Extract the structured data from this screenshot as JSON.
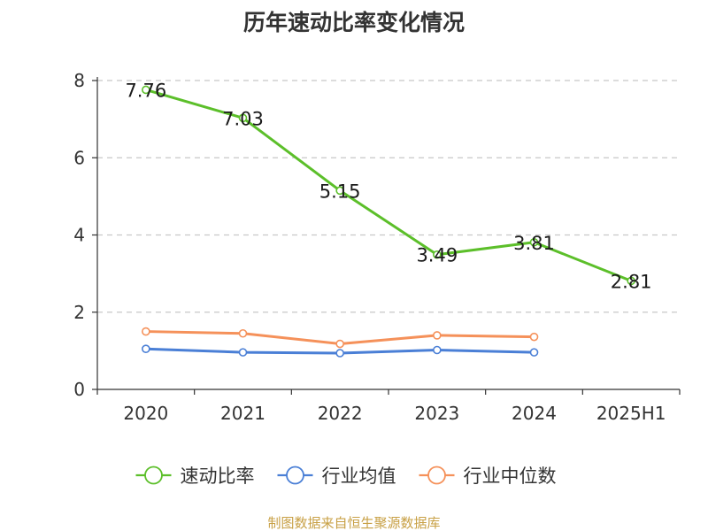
{
  "chart_data": {
    "type": "line",
    "title": "历年速动比率变化情况",
    "xlabel": "",
    "ylabel": "",
    "categories": [
      "2020",
      "2021",
      "2022",
      "2023",
      "2024",
      "2025H1"
    ],
    "ylim": [
      0,
      8
    ],
    "yticks": [
      0,
      2,
      4,
      6,
      8
    ],
    "grid": true,
    "legend_position": "bottom",
    "series": [
      {
        "name": "速动比率",
        "color": "#5cbf2a",
        "values": [
          7.76,
          7.03,
          5.15,
          3.49,
          3.81,
          2.81
        ],
        "labels": [
          "7.76",
          "7.03",
          "5.15",
          "3.49",
          "3.81",
          "2.81"
        ],
        "show_labels": true
      },
      {
        "name": "行业均值",
        "color": "#4a7fd6",
        "values": [
          1.05,
          0.96,
          0.94,
          1.02,
          0.96,
          null
        ],
        "show_labels": false
      },
      {
        "name": "行业中位数",
        "color": "#f5915a",
        "values": [
          1.5,
          1.45,
          1.18,
          1.4,
          1.36,
          null
        ],
        "show_labels": false
      }
    ]
  },
  "source_note": "制图数据来自恒生聚源数据库"
}
